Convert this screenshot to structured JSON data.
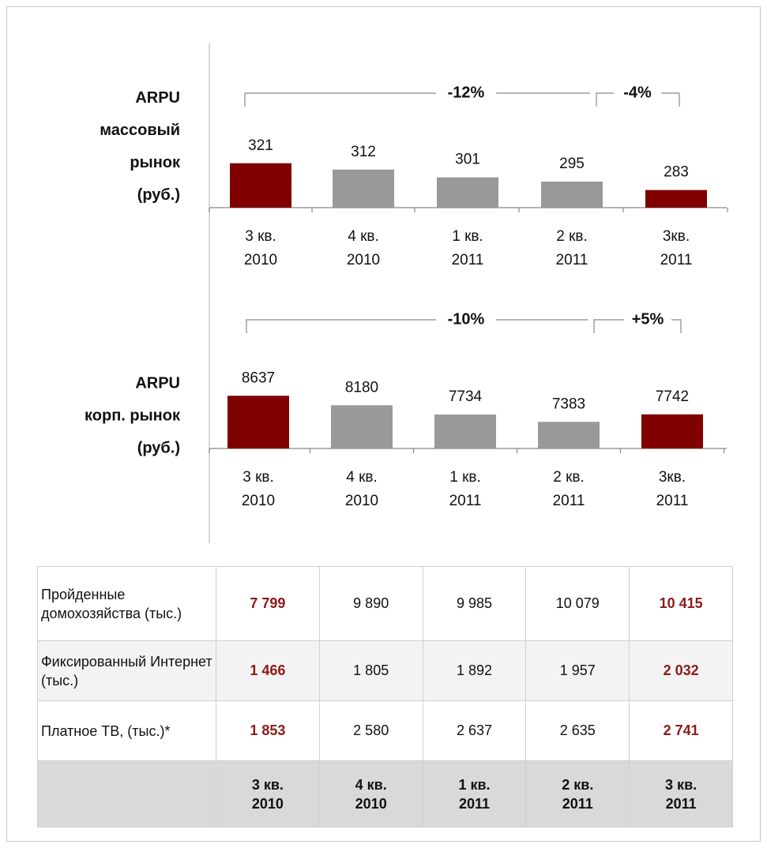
{
  "chart_data": [
    {
      "type": "bar",
      "title_lines": [
        "ARPU",
        "массовый",
        "рынок",
        "(руб.)"
      ],
      "categories": [
        "3 кв. 2010",
        "4 кв. 2010",
        "1 кв. 2011",
        "2 кв. 2011",
        "3кв. 2011"
      ],
      "values": [
        321,
        312,
        301,
        295,
        283
      ],
      "colors": [
        "#800000",
        "#999999",
        "#999999",
        "#999999",
        "#800000"
      ],
      "ylim": [
        258,
        370
      ],
      "annotations": [
        "-12%",
        "-4%"
      ]
    },
    {
      "type": "bar",
      "title_lines": [
        "ARPU",
        "корп. рынок",
        "(руб.)"
      ],
      "categories": [
        "3 кв. 2010",
        "4 кв. 2010",
        "1 кв. 2011",
        "2 кв. 2011",
        "3кв. 2011"
      ],
      "values": [
        8637,
        8180,
        7734,
        7383,
        7742
      ],
      "colors": [
        "#800000",
        "#999999",
        "#999999",
        "#999999",
        "#800000"
      ],
      "ylim": [
        6100,
        9900
      ],
      "annotations": [
        "-10%",
        "+5%"
      ]
    }
  ],
  "table": {
    "rows": [
      {
        "label": "Пройденные домохозяйства (тыс.)",
        "cells": [
          "7 799",
          "9 890",
          "9 985",
          "10 079",
          "10 415"
        ]
      },
      {
        "label": "Фиксированный Интернет (тыс.)",
        "cells": [
          "1 466",
          "1 805",
          "1 892",
          "1 957",
          "2 032"
        ]
      },
      {
        "label": "Платное ТВ, (тыс.)*",
        "cells": [
          "1 853",
          "2 580",
          "2 637",
          "2 635",
          "2 741"
        ]
      }
    ],
    "header": [
      "3 кв. 2010",
      "4 кв. 2010",
      "1 кв. 2011",
      "2 кв. 2011",
      "3 кв. 2011"
    ],
    "highlight_columns": [
      0,
      4
    ],
    "highlight_color": "#8b1a1a"
  }
}
